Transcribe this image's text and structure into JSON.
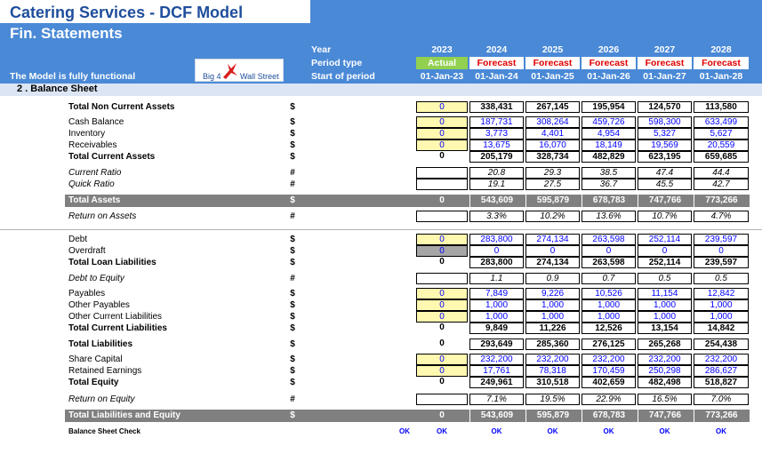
{
  "title": "Catering Services - DCF Model",
  "subtitle": "Fin. Statements",
  "model_note": "The Model is fully functional",
  "logo": {
    "left_text": "Big 4",
    "right_text": "Wall Street",
    "mark": "bird-logo"
  },
  "header": {
    "year_label": "Year",
    "period_label": "Period type",
    "start_label": "Start of period",
    "years": [
      "2023",
      "2024",
      "2025",
      "2026",
      "2027",
      "2028"
    ],
    "period_types": [
      "Actual",
      "Forecast",
      "Forecast",
      "Forecast",
      "Forecast",
      "Forecast"
    ],
    "start_dates": [
      "01-Jan-23",
      "01-Jan-24",
      "01-Jan-25",
      "01-Jan-26",
      "01-Jan-27",
      "01-Jan-28"
    ]
  },
  "section_title": "2 .  Balance Sheet",
  "rows": {
    "tnca": {
      "label": "Total Non Current Assets",
      "unit": "$",
      "values": [
        "0",
        "338,431",
        "267,145",
        "195,954",
        "124,570",
        "113,580"
      ]
    },
    "cash": {
      "label": "Cash Balance",
      "unit": "$",
      "values": [
        "0",
        "187,731",
        "308,264",
        "459,726",
        "598,300",
        "633,499"
      ]
    },
    "inventory": {
      "label": "Inventory",
      "unit": "$",
      "values": [
        "0",
        "3,773",
        "4,401",
        "4,954",
        "5,327",
        "5,627"
      ]
    },
    "receivables": {
      "label": "Receivables",
      "unit": "$",
      "values": [
        "0",
        "13,675",
        "16,070",
        "18,149",
        "19,569",
        "20,559"
      ]
    },
    "tca": {
      "label": "Total Current Assets",
      "unit": "$",
      "values": [
        "0",
        "205,179",
        "328,734",
        "482,829",
        "623,195",
        "659,685"
      ]
    },
    "current_ratio": {
      "label": "Current Ratio",
      "unit": "#",
      "values": [
        "",
        "20.8",
        "29.3",
        "38.5",
        "47.4",
        "44.4"
      ]
    },
    "quick_ratio": {
      "label": "Quick Ratio",
      "unit": "#",
      "values": [
        "",
        "19.1",
        "27.5",
        "36.7",
        "45.5",
        "42.7"
      ]
    },
    "total_assets": {
      "label": "Total Assets",
      "unit": "$",
      "values": [
        "0",
        "543,609",
        "595,879",
        "678,783",
        "747,766",
        "773,266"
      ]
    },
    "roa": {
      "label": "Return on Assets",
      "unit": "#",
      "values": [
        "",
        "3.3%",
        "10.2%",
        "13.6%",
        "10.7%",
        "4.7%"
      ]
    },
    "debt": {
      "label": "Debt",
      "unit": "$",
      "values": [
        "0",
        "283,800",
        "274,134",
        "263,598",
        "252,114",
        "239,597"
      ]
    },
    "overdraft": {
      "label": "Overdraft",
      "unit": "$",
      "values": [
        "0",
        "0",
        "0",
        "0",
        "0",
        "0"
      ]
    },
    "tll": {
      "label": "Total Loan Liabilities",
      "unit": "$",
      "values": [
        "0",
        "283,800",
        "274,134",
        "263,598",
        "252,114",
        "239,597"
      ]
    },
    "dte": {
      "label": "Debt to Equity",
      "unit": "#",
      "values": [
        "",
        "1.1",
        "0.9",
        "0.7",
        "0.5",
        "0.5"
      ]
    },
    "payables": {
      "label": "Payables",
      "unit": "$",
      "values": [
        "0",
        "7,849",
        "9,226",
        "10,526",
        "11,154",
        "12,842"
      ]
    },
    "other_payables": {
      "label": "Other  Payables",
      "unit": "$",
      "values": [
        "0",
        "1,000",
        "1,000",
        "1,000",
        "1,000",
        "1,000"
      ]
    },
    "ocl": {
      "label": "Other Current Liabilities",
      "unit": "$",
      "values": [
        "0",
        "1,000",
        "1,000",
        "1,000",
        "1,000",
        "1,000"
      ]
    },
    "tcl": {
      "label": "Total Current Liabilities",
      "unit": "$",
      "values": [
        "0",
        "9,849",
        "11,226",
        "12,526",
        "13,154",
        "14,842"
      ]
    },
    "tl": {
      "label": "Total Liabilities",
      "unit": "$",
      "values": [
        "0",
        "293,649",
        "285,360",
        "276,125",
        "265,268",
        "254,438"
      ]
    },
    "share_capital": {
      "label": "Share Capital",
      "unit": "$",
      "values": [
        "0",
        "232,200",
        "232,200",
        "232,200",
        "232,200",
        "232,200"
      ]
    },
    "retained": {
      "label": "Retained Earnings",
      "unit": "$",
      "values": [
        "0",
        "17,761",
        "78,318",
        "170,459",
        "250,298",
        "286,627"
      ]
    },
    "total_equity": {
      "label": "Total Equity",
      "unit": "$",
      "values": [
        "0",
        "249,961",
        "310,518",
        "402,659",
        "482,498",
        "518,827"
      ]
    },
    "roe": {
      "label": "Return on Equity",
      "unit": "#",
      "values": [
        "",
        "7.1%",
        "19.5%",
        "22.9%",
        "16.5%",
        "7.0%"
      ]
    },
    "tle": {
      "label": "Total Liabilities and Equity",
      "unit": "$",
      "values": [
        "0",
        "543,609",
        "595,879",
        "678,783",
        "747,766",
        "773,266"
      ]
    }
  },
  "check": {
    "label": "Balance Sheet Check",
    "summary": "OK",
    "values": [
      "OK",
      "OK",
      "OK",
      "OK",
      "OK",
      "OK"
    ]
  },
  "colors": {
    "header_blue": "#4a89d6",
    "title_blue": "#1f4e9c",
    "actual_green": "#92d050",
    "forecast_red": "#e00000",
    "input_yellow": "#fff8b0",
    "total_grey": "#808080"
  }
}
